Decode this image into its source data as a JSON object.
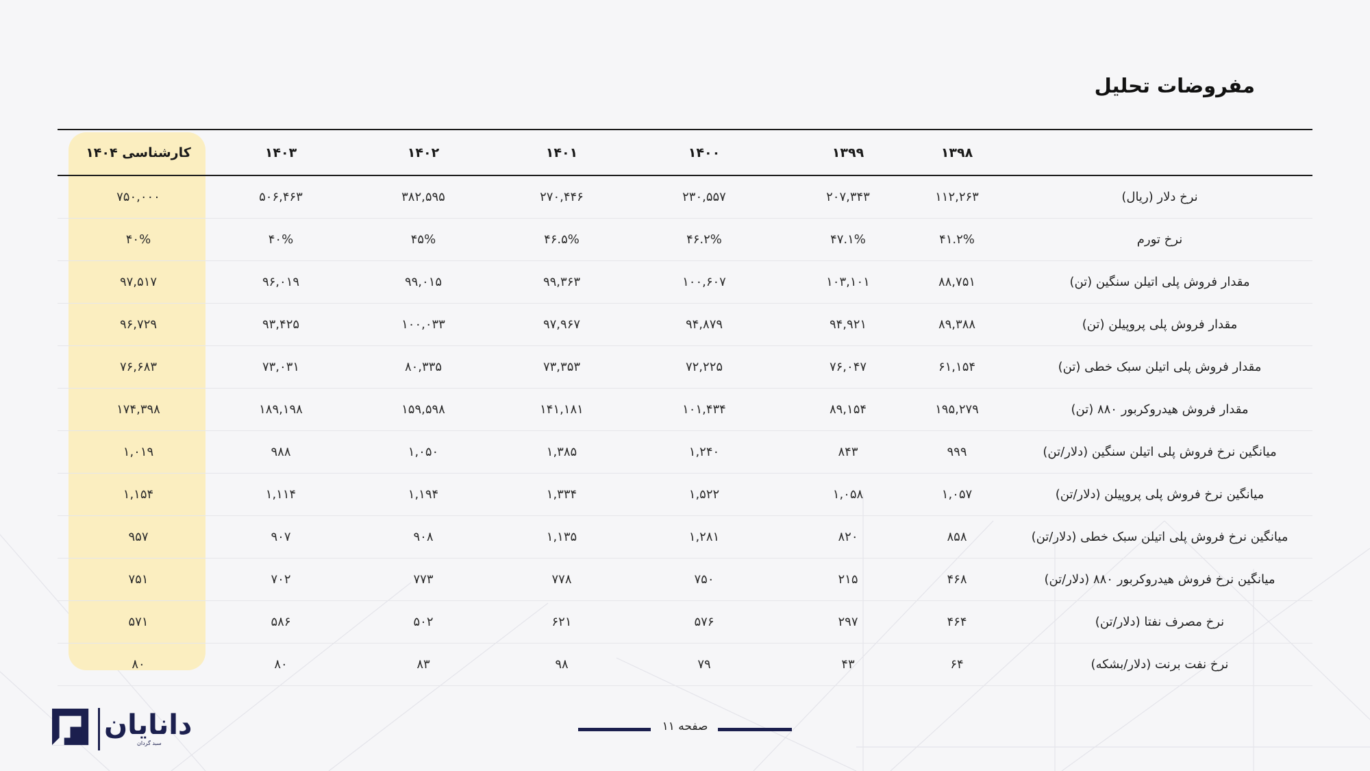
{
  "title": "مفروضات تحلیل",
  "table": {
    "headers": [
      "کارشناسی ۱۴۰۴",
      "۱۴۰۳",
      "۱۴۰۲",
      "۱۴۰۱",
      "۱۴۰۰",
      "۱۳۹۹",
      "۱۳۹۸",
      ""
    ],
    "rows": [
      {
        "label": "نرخ دلار (ریال)",
        "values": [
          "۷۵۰,۰۰۰",
          "۵۰۶,۴۶۳",
          "۳۸۲,۵۹۵",
          "۲۷۰,۴۴۶",
          "۲۳۰,۵۵۷",
          "۲۰۷,۳۴۳",
          "۱۱۲,۲۶۳"
        ]
      },
      {
        "label": "نرخ تورم",
        "values": [
          "۴۰%",
          "۴۰%",
          "۴۵%",
          "۴۶.۵%",
          "۴۶.۲%",
          "۴۷.۱%",
          "۴۱.۲%"
        ]
      },
      {
        "label": "مقدار فروش پلی اتیلن سنگین (تن)",
        "values": [
          "۹۷,۵۱۷",
          "۹۶,۰۱۹",
          "۹۹,۰۱۵",
          "۹۹,۳۶۳",
          "۱۰۰,۶۰۷",
          "۱۰۳,۱۰۱",
          "۸۸,۷۵۱"
        ]
      },
      {
        "label": "مقدار فروش پلی پروپیلن (تن)",
        "values": [
          "۹۶,۷۲۹",
          "۹۳,۴۲۵",
          "۱۰۰,۰۳۳",
          "۹۷,۹۶۷",
          "۹۴,۸۷۹",
          "۹۴,۹۲۱",
          "۸۹,۳۸۸"
        ]
      },
      {
        "label": "مقدار فروش پلی اتیلن سبک خطی (تن)",
        "values": [
          "۷۶,۶۸۳",
          "۷۳,۰۳۱",
          "۸۰,۳۳۵",
          "۷۳,۳۵۳",
          "۷۲,۲۲۵",
          "۷۶,۰۴۷",
          "۶۱,۱۵۴"
        ]
      },
      {
        "label": "مقدار فروش هیدروکربور ۸۸۰ (تن)",
        "values": [
          "۱۷۴,۳۹۸",
          "۱۸۹,۱۹۸",
          "۱۵۹,۵۹۸",
          "۱۴۱,۱۸۱",
          "۱۰۱,۴۳۴",
          "۸۹,۱۵۴",
          "۱۹۵,۲۷۹"
        ]
      },
      {
        "label": "میانگین نرخ فروش پلی اتیلن سنگین (دلار/تن)",
        "values": [
          "۱,۰۱۹",
          "۹۸۸",
          "۱,۰۵۰",
          "۱,۳۸۵",
          "۱,۲۴۰",
          "۸۴۳",
          "۹۹۹"
        ]
      },
      {
        "label": "میانگین نرخ فروش پلی پروپیلن (دلار/تن)",
        "values": [
          "۱,۱۵۴",
          "۱,۱۱۴",
          "۱,۱۹۴",
          "۱,۳۳۴",
          "۱,۵۲۲",
          "۱,۰۵۸",
          "۱,۰۵۷"
        ]
      },
      {
        "label": "میانگین نرخ فروش پلی اتیلن سبک خطی (دلار/تن)",
        "values": [
          "۹۵۷",
          "۹۰۷",
          "۹۰۸",
          "۱,۱۳۵",
          "۱,۲۸۱",
          "۸۲۰",
          "۸۵۸"
        ]
      },
      {
        "label": "میانگین نرخ فروش هیدروکربور ۸۸۰ (دلار/تن)",
        "values": [
          "۷۵۱",
          "۷۰۲",
          "۷۷۳",
          "۷۷۸",
          "۷۵۰",
          "۲۱۵",
          "۴۶۸"
        ]
      },
      {
        "label": "نرخ مصرف نفتا (دلار/تن)",
        "values": [
          "۵۷۱",
          "۵۸۶",
          "۵۰۲",
          "۶۲۱",
          "۵۷۶",
          "۲۹۷",
          "۴۶۴"
        ]
      },
      {
        "label": "نرخ نفت برنت (دلار/بشکه)",
        "values": [
          "۸۰",
          "۸۰",
          "۸۳",
          "۹۸",
          "۷۹",
          "۴۳",
          "۶۴"
        ]
      }
    ]
  },
  "footer": {
    "page_label": "صفحه ۱۱"
  },
  "logo": {
    "name": "دانایان",
    "subtitle": "سبد گردان"
  },
  "colors": {
    "highlight": "#fbeec0",
    "brand": "#1b1f4e"
  }
}
